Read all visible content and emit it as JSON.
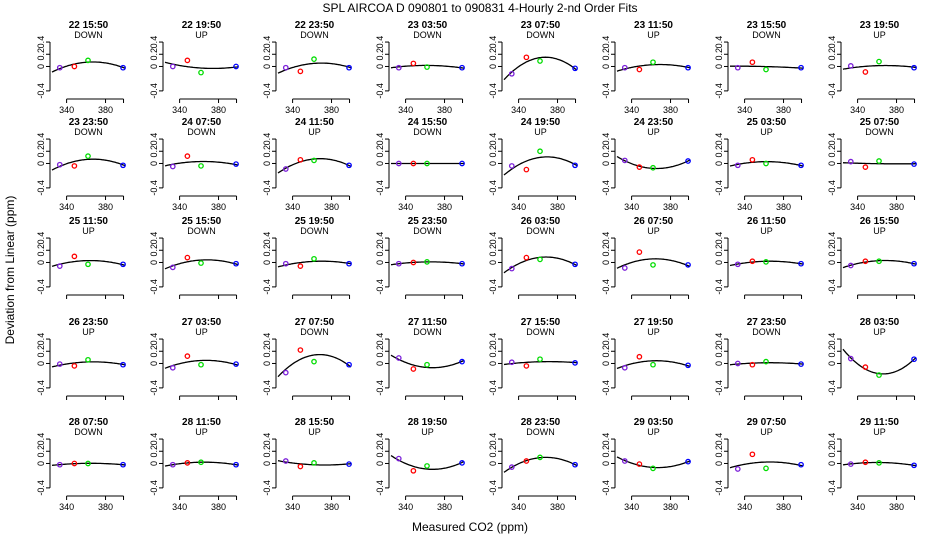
{
  "title": "SPL   AIRCOA D   090801 to 090831   4-Hourly 2-nd Order Fits",
  "colors": {
    "reference": "#7b1fd9",
    "point_red": "#ff0000",
    "point_green": "#00dd00",
    "point_blue": "#0000ff",
    "curve": "#000000"
  },
  "chart_data": {
    "type": "scatter",
    "xlabel": "Measured CO2 (ppm)",
    "ylabel": "Deviation from Linear (ppm)",
    "xlim": [
      325,
      400
    ],
    "ylim": [
      -0.5,
      0.45
    ],
    "xticks": [
      340,
      380
    ],
    "yticks": [
      -0.4,
      0,
      0.2,
      0.4
    ],
    "ytick_labels": [
      "-0.4",
      "0",
      "0.2",
      "0.4"
    ],
    "point_x": [
      333,
      348,
      362,
      398
    ],
    "panels": [
      {
        "time": "22 15:50",
        "dir": "DOWN",
        "y": [
          -0.02,
          0.0,
          0.1,
          -0.02
        ]
      },
      {
        "time": "22 19:50",
        "dir": "UP",
        "y": [
          0.0,
          0.1,
          -0.1,
          0.0
        ]
      },
      {
        "time": "22 23:50",
        "dir": "DOWN",
        "y": [
          -0.02,
          -0.08,
          0.12,
          -0.02
        ]
      },
      {
        "time": "23 03:50",
        "dir": "DOWN",
        "y": [
          -0.02,
          0.05,
          -0.01,
          -0.02
        ]
      },
      {
        "time": "23 07:50",
        "dir": "DOWN",
        "y": [
          -0.12,
          0.15,
          0.09,
          -0.03
        ]
      },
      {
        "time": "23 11:50",
        "dir": "UP",
        "y": [
          -0.02,
          -0.05,
          0.07,
          -0.02
        ]
      },
      {
        "time": "23 15:50",
        "dir": "DOWN",
        "y": [
          -0.02,
          0.07,
          -0.05,
          -0.02
        ]
      },
      {
        "time": "23 19:50",
        "dir": "UP",
        "y": [
          0.01,
          -0.09,
          0.08,
          -0.02
        ]
      },
      {
        "time": "23 23:50",
        "dir": "DOWN",
        "y": [
          -0.02,
          -0.04,
          0.12,
          -0.03
        ]
      },
      {
        "time": "24 07:50",
        "dir": "DOWN",
        "y": [
          -0.05,
          0.12,
          -0.04,
          -0.01
        ]
      },
      {
        "time": "24 11:50",
        "dir": "UP",
        "y": [
          -0.09,
          0.06,
          0.05,
          -0.03
        ]
      },
      {
        "time": "24 15:50",
        "dir": "DOWN",
        "y": [
          0.0,
          0.0,
          0.0,
          0.0
        ]
      },
      {
        "time": "24 19:50",
        "dir": "UP",
        "y": [
          -0.04,
          -0.1,
          0.2,
          -0.03
        ]
      },
      {
        "time": "24 23:50",
        "dir": "UP",
        "y": [
          0.05,
          -0.06,
          -0.07,
          0.04
        ]
      },
      {
        "time": "25 03:50",
        "dir": "UP",
        "y": [
          -0.03,
          0.06,
          0.0,
          -0.03
        ]
      },
      {
        "time": "25 07:50",
        "dir": "DOWN",
        "y": [
          0.03,
          -0.06,
          0.04,
          -0.01
        ]
      },
      {
        "time": "25 11:50",
        "dir": "UP",
        "y": [
          -0.06,
          0.1,
          -0.03,
          -0.03
        ]
      },
      {
        "time": "25 15:50",
        "dir": "DOWN",
        "y": [
          -0.08,
          0.08,
          -0.01,
          -0.02
        ]
      },
      {
        "time": "25 19:50",
        "dir": "DOWN",
        "y": [
          -0.02,
          -0.06,
          0.06,
          -0.02
        ]
      },
      {
        "time": "25 23:50",
        "dir": "DOWN",
        "y": [
          -0.02,
          0.0,
          0.01,
          -0.02
        ]
      },
      {
        "time": "26 03:50",
        "dir": "DOWN",
        "y": [
          -0.1,
          0.08,
          0.05,
          -0.03
        ]
      },
      {
        "time": "26 07:50",
        "dir": "UP",
        "y": [
          -0.09,
          0.17,
          -0.04,
          -0.04
        ]
      },
      {
        "time": "26 11:50",
        "dir": "UP",
        "y": [
          -0.03,
          0.02,
          0.01,
          -0.02
        ]
      },
      {
        "time": "26 15:50",
        "dir": "UP",
        "y": [
          -0.05,
          0.02,
          0.02,
          -0.02
        ]
      },
      {
        "time": "26 23:50",
        "dir": "UP",
        "y": [
          -0.01,
          -0.04,
          0.06,
          -0.02
        ]
      },
      {
        "time": "27 03:50",
        "dir": "UP",
        "y": [
          -0.07,
          0.12,
          -0.02,
          -0.01
        ]
      },
      {
        "time": "27 07:50",
        "dir": "DOWN",
        "y": [
          -0.15,
          0.22,
          0.03,
          -0.02
        ]
      },
      {
        "time": "27 11:50",
        "dir": "DOWN",
        "y": [
          0.09,
          -0.09,
          -0.02,
          0.03
        ]
      },
      {
        "time": "27 15:50",
        "dir": "DOWN",
        "y": [
          0.02,
          -0.04,
          0.07,
          0.01
        ]
      },
      {
        "time": "27 19:50",
        "dir": "UP",
        "y": [
          -0.07,
          0.11,
          -0.02,
          -0.03
        ]
      },
      {
        "time": "27 23:50",
        "dir": "DOWN",
        "y": [
          0.0,
          -0.02,
          0.03,
          -0.01
        ]
      },
      {
        "time": "28 03:50",
        "dir": "UP",
        "y": [
          0.08,
          -0.06,
          -0.19,
          0.07
        ]
      },
      {
        "time": "28 07:50",
        "dir": "DOWN",
        "y": [
          -0.02,
          0.0,
          0.0,
          -0.02
        ]
      },
      {
        "time": "28 11:50",
        "dir": "UP",
        "y": [
          -0.02,
          0.01,
          0.02,
          -0.02
        ]
      },
      {
        "time": "28 15:50",
        "dir": "UP",
        "y": [
          0.04,
          -0.05,
          0.01,
          -0.01
        ]
      },
      {
        "time": "28 19:50",
        "dir": "UP",
        "y": [
          0.08,
          -0.12,
          -0.04,
          0.01
        ]
      },
      {
        "time": "28 23:50",
        "dir": "DOWN",
        "y": [
          -0.06,
          0.04,
          0.1,
          -0.02
        ]
      },
      {
        "time": "29 03:50",
        "dir": "UP",
        "y": [
          0.04,
          -0.01,
          -0.08,
          0.03
        ]
      },
      {
        "time": "29 07:50",
        "dir": "UP",
        "y": [
          -0.09,
          0.15,
          -0.08,
          -0.02
        ]
      },
      {
        "time": "29 11:50",
        "dir": "UP",
        "y": [
          -0.01,
          0.02,
          0.01,
          -0.03
        ]
      }
    ]
  }
}
